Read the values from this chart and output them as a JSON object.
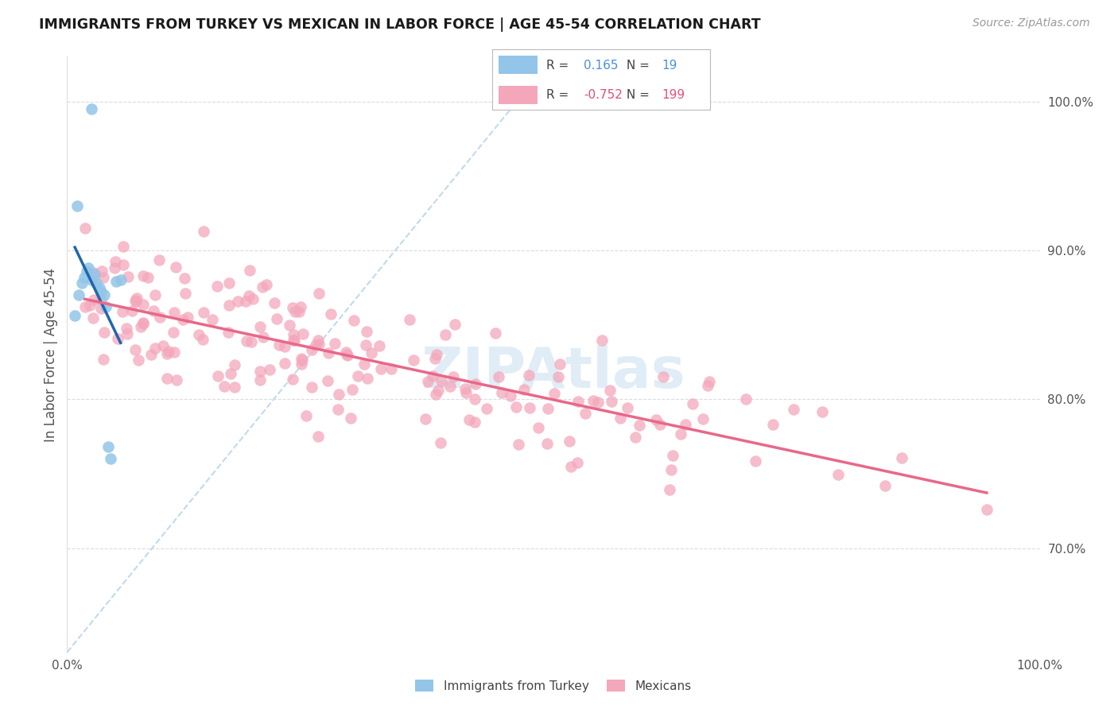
{
  "title": "IMMIGRANTS FROM TURKEY VS MEXICAN IN LABOR FORCE | AGE 45-54 CORRELATION CHART",
  "source": "Source: ZipAtlas.com",
  "ylabel": "In Labor Force | Age 45-54",
  "r_turkey": 0.165,
  "n_turkey": 19,
  "r_mexican": -0.752,
  "n_mexican": 199,
  "turkey_color": "#92c5e8",
  "mexican_color": "#f4a7bb",
  "turkey_line_color": "#2166ac",
  "mexican_line_color": "#e8688a",
  "diagonal_color": "#bad6ea",
  "background_color": "#ffffff",
  "grid_color": "#cccccc",
  "xlim": [
    0.0,
    1.0
  ],
  "ylim": [
    0.63,
    1.03
  ],
  "legend_r_color_turkey": "#4a90d9",
  "legend_r_color_mexican": "#e0507a",
  "legend_n_color_turkey": "#4a90d9",
  "legend_n_color_mexican": "#e0507a"
}
